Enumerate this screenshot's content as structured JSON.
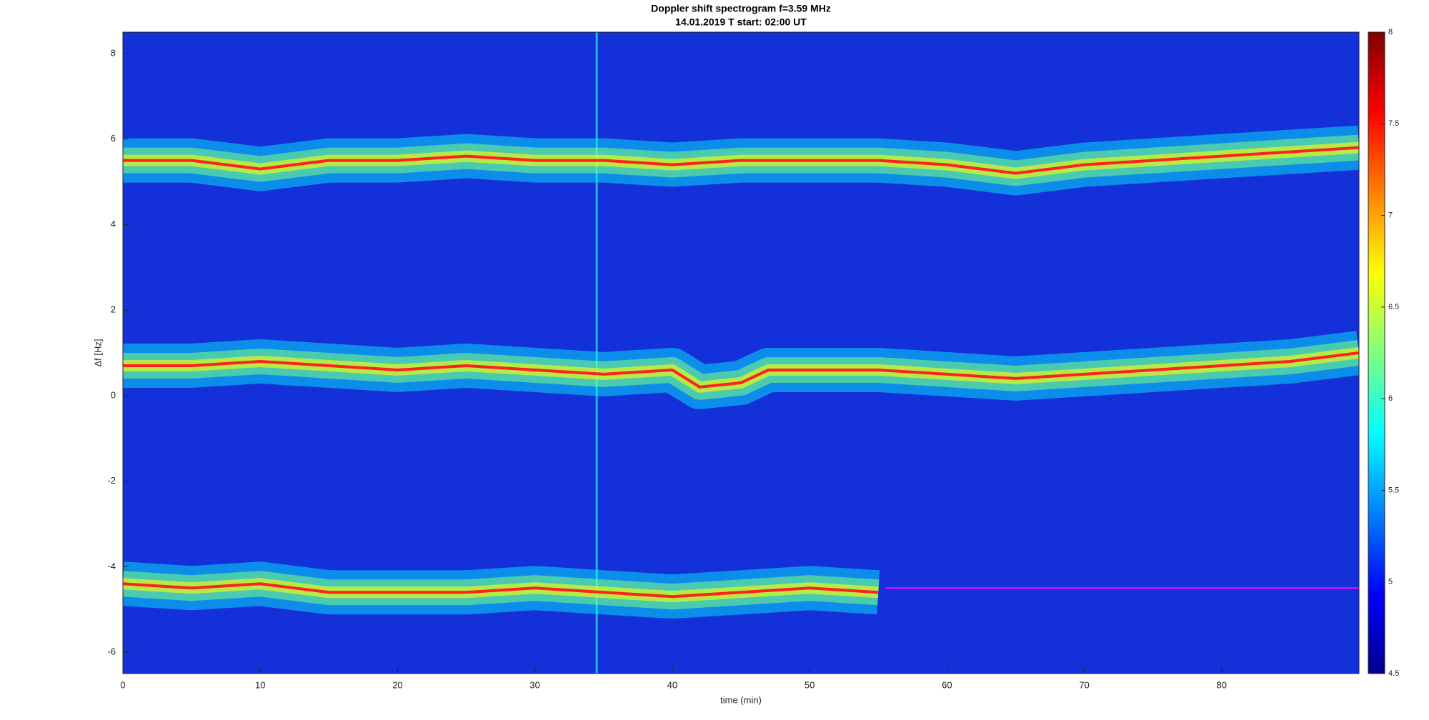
{
  "chart_data": {
    "type": "spectrogram",
    "title": "Doppler shift spectrogram f=3.59 MHz",
    "subtitle": "14.01.2019   T start: 02:00 UT",
    "x_label": "time (min)",
    "y_label": "Δf [Hz]",
    "xlim": [
      0,
      90
    ],
    "xticks": [
      0,
      10,
      20,
      30,
      40,
      50,
      60,
      70,
      80
    ],
    "ylim": [
      -6.5,
      8.5
    ],
    "yticks": [
      -6,
      -4,
      -2,
      0,
      2,
      4,
      6,
      8
    ],
    "colorbar": {
      "clim": [
        4.5,
        8
      ],
      "ticks": [
        4.5,
        5,
        5.5,
        6,
        6.5,
        7,
        7.5,
        8
      ],
      "colors": [
        "#00008f",
        "#0000ff",
        "#0080ff",
        "#00ffff",
        "#80ff80",
        "#ffff00",
        "#ff8000",
        "#ff0000",
        "#800000"
      ]
    },
    "series": [
      {
        "color": "#ff2020",
        "x": [
          0,
          5,
          10,
          15,
          20,
          25,
          30,
          35,
          40,
          45,
          50,
          55,
          60,
          65,
          70,
          75,
          80,
          85,
          90
        ],
        "values": [
          5.5,
          5.5,
          5.3,
          5.5,
          5.5,
          5.6,
          5.5,
          5.5,
          5.4,
          5.5,
          5.5,
          5.5,
          5.4,
          5.2,
          5.4,
          5.5,
          5.6,
          5.7,
          5.8
        ]
      },
      {
        "color": "#ff2020",
        "x": [
          0,
          5,
          10,
          15,
          20,
          25,
          30,
          35,
          40,
          42,
          45,
          47,
          50,
          55,
          60,
          65,
          70,
          75,
          80,
          85,
          90
        ],
        "values": [
          0.7,
          0.7,
          0.8,
          0.7,
          0.6,
          0.7,
          0.6,
          0.5,
          0.6,
          0.2,
          0.3,
          0.6,
          0.6,
          0.6,
          0.5,
          0.4,
          0.5,
          0.6,
          0.7,
          0.8,
          1.0
        ]
      },
      {
        "color": "#ff2020",
        "x": [
          0,
          5,
          10,
          15,
          20,
          25,
          30,
          35,
          40,
          45,
          50,
          55
        ],
        "values": [
          -4.4,
          -4.5,
          -4.4,
          -4.6,
          -4.6,
          -4.6,
          -4.5,
          -4.6,
          -4.7,
          -4.6,
          -4.5,
          -4.6
        ]
      },
      {
        "color": "#ff00ff",
        "x": [
          55.5,
          90
        ],
        "values": [
          -4.5,
          -4.5
        ],
        "thin": true
      }
    ],
    "vertical_lines": [
      {
        "x": 34.5,
        "color": "#20d0e8"
      }
    ]
  }
}
